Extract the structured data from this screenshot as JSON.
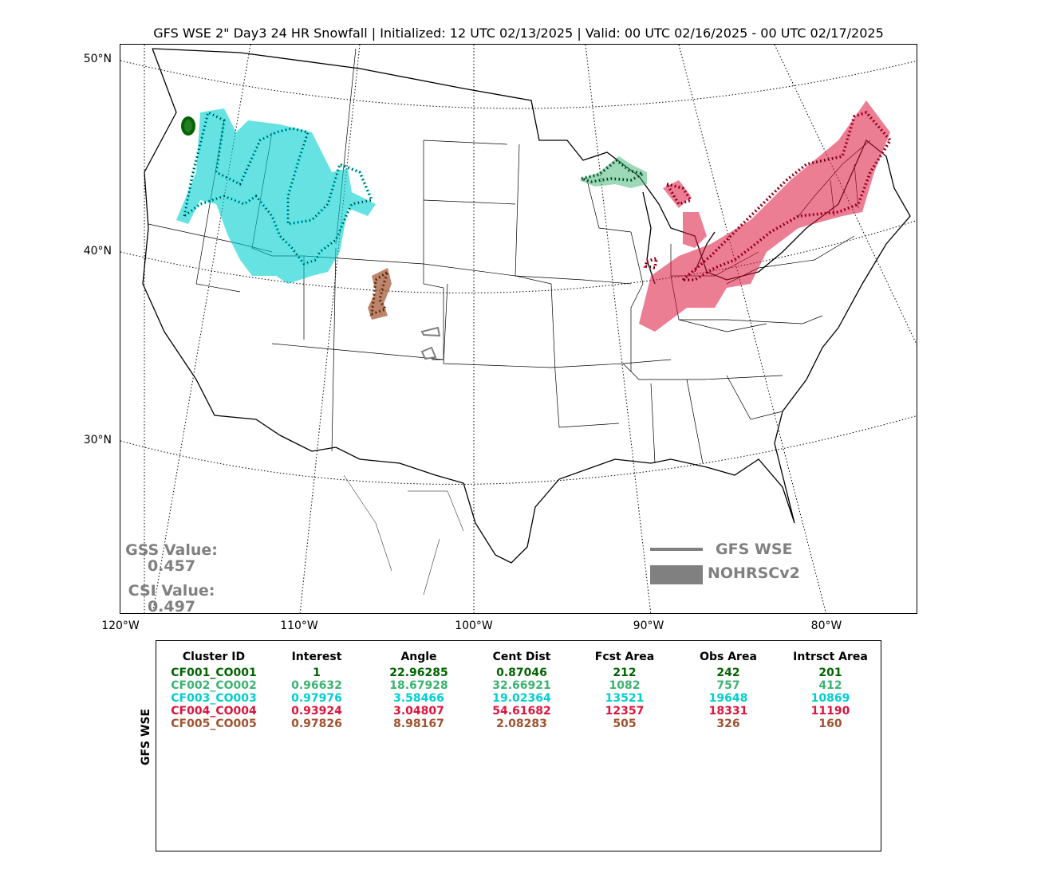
{
  "title": "GFS WSE 2\" Day3 24 HR Snowfall | Initialized: 12 UTC 02/13/2025 | Valid: 00 UTC 02/16/2025 - 00 UTC 02/17/2025",
  "lat_labels": [
    "50°N",
    "40°N",
    "30°N"
  ],
  "lon_labels": [
    "120°W",
    "110°W",
    "100°W",
    "90°W",
    "80°W"
  ],
  "scores": {
    "gss_label": "GSS Value:",
    "gss_value": "0.457",
    "csi_label": "CSI Value:",
    "csi_value": "0.497"
  },
  "legend": {
    "line_label": "GFS WSE",
    "fill_label": "NOHRSCv2",
    "color": "#808080"
  },
  "table": {
    "side_label": "GFS WSE",
    "headers": [
      "Cluster ID",
      "Interest",
      "Angle",
      "Cent Dist",
      "Fcst Area",
      "Obs Area",
      "Intrsct Area"
    ],
    "rows": [
      {
        "color": "#006400",
        "cells": [
          "CF001_CO001",
          "1",
          "22.96285",
          "0.87046",
          "212",
          "242",
          "201"
        ]
      },
      {
        "color": "#3CB371",
        "cells": [
          "CF002_CO002",
          "0.96632",
          "18.67928",
          "32.66921",
          "1082",
          "757",
          "412"
        ]
      },
      {
        "color": "#00CED1",
        "cells": [
          "CF003_CO003",
          "0.97976",
          "3.58466",
          "19.02364",
          "13521",
          "19648",
          "10869"
        ]
      },
      {
        "color": "#DC143C",
        "cells": [
          "CF004_CO004",
          "0.93924",
          "3.04807",
          "54.61682",
          "12357",
          "18331",
          "11190"
        ]
      },
      {
        "color": "#A0522D",
        "cells": [
          "CF005_CO005",
          "0.97826",
          "8.98167",
          "2.08283",
          "505",
          "326",
          "160"
        ]
      }
    ]
  },
  "cluster_colors": {
    "c1": "#006400",
    "c2": "#3CB371",
    "c3": "#00CED1",
    "c4": "#DC143C",
    "c5": "#A0522D",
    "unmatched": "#808080"
  }
}
